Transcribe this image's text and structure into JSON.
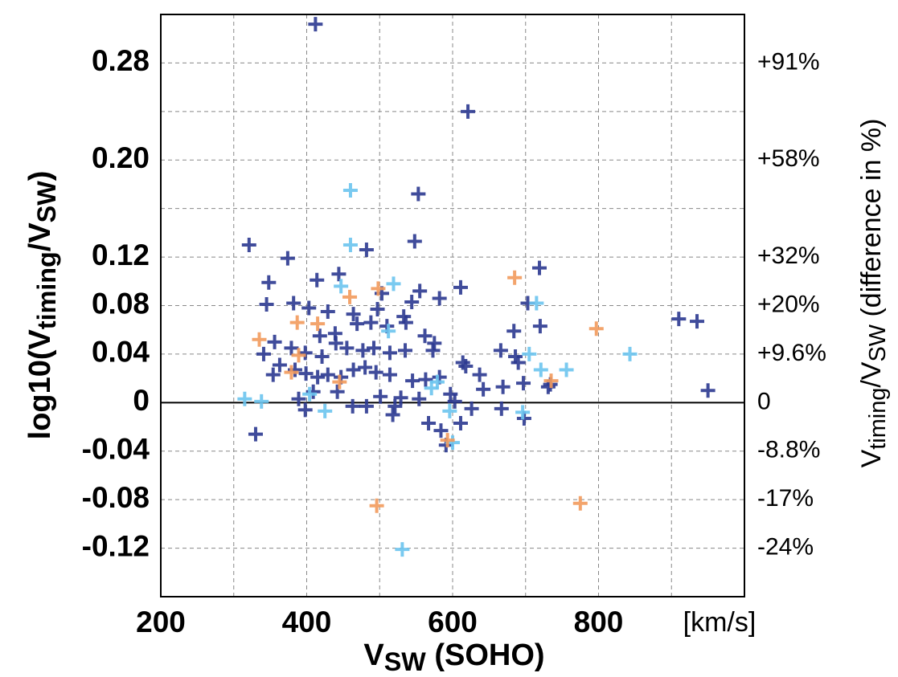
{
  "chart_data": {
    "type": "scatter",
    "xlabel": [
      "V",
      "SW",
      " (SOHO)"
    ],
    "xunit": "[km/s]",
    "ylabel": [
      "log10(V",
      "timing",
      "/V",
      "SW",
      ")"
    ],
    "y2label": [
      "V",
      "timing",
      "/V",
      "SW",
      " (difference in %)"
    ],
    "xlim": [
      200,
      1000
    ],
    "xticks": [
      200,
      400,
      600,
      800
    ],
    "xminor": [
      300,
      500,
      700,
      900
    ],
    "ylim": [
      -0.16,
      0.32
    ],
    "yticks": [
      -0.12,
      -0.08,
      -0.04,
      0,
      0.04,
      0.08,
      0.12,
      {
        "value": 0.2,
        "label": "0.20"
      },
      0.28
    ],
    "yminor": [
      0.16,
      0.24
    ],
    "y2lim": [
      -0.16,
      0.32
    ],
    "y2ticks": [
      {
        "value": -0.12,
        "label": "-24%"
      },
      {
        "value": -0.08,
        "label": "-17%"
      },
      {
        "value": -0.04,
        "label": "-8.8%"
      },
      0,
      {
        "value": 0.04,
        "label": "+9.6%"
      },
      {
        "value": 0.08,
        "label": "+20%"
      },
      {
        "value": 0.12,
        "label": "+32%"
      },
      {
        "value": 0.2,
        "label": "+58%"
      },
      {
        "value": 0.28,
        "label": "+91%"
      }
    ],
    "hline": 0,
    "grid": true,
    "series": [
      {
        "color": "#2b3990",
        "x": [
          412,
          621,
          553,
          321,
          548,
          482,
          374,
          719,
          348,
          414,
          444,
          611,
          555,
          503,
          345,
          382,
          403,
          429,
          464,
          497,
          544,
          582,
          703,
          684,
          720,
          910,
          935,
          950,
          356,
          418,
          439,
          469,
          488,
          510,
          533,
          536,
          562,
          575,
          341,
          379,
          398,
          421,
          440,
          455,
          477,
          492,
          514,
          535,
          573,
          614,
          618,
          666,
          686,
          690,
          637,
          354,
          363,
          384,
          399,
          415,
          429,
          447,
          464,
          480,
          495,
          514,
          545,
          563,
          582,
          597,
          642,
          669,
          697,
          731,
          734,
          389,
          409,
          442,
          463,
          482,
          501,
          521,
          529,
          554,
          603,
          626,
          667,
          698,
          567,
          584,
          591,
          330,
          398,
          518,
          611
        ],
        "values": [
          0.312,
          0.24,
          0.172,
          0.13,
          0.133,
          0.126,
          0.119,
          0.111,
          0.099,
          0.101,
          0.106,
          0.095,
          0.092,
          0.09,
          0.081,
          0.082,
          0.078,
          0.075,
          0.073,
          0.077,
          0.083,
          0.086,
          0.082,
          0.059,
          0.063,
          0.069,
          0.067,
          0.01,
          0.05,
          0.055,
          0.057,
          0.065,
          0.066,
          0.063,
          0.071,
          0.066,
          0.055,
          0.049,
          0.04,
          0.045,
          0.041,
          0.038,
          0.049,
          0.045,
          0.043,
          0.045,
          0.041,
          0.043,
          0.043,
          0.033,
          0.03,
          0.043,
          0.038,
          0.033,
          0.023,
          0.023,
          0.031,
          0.027,
          0.024,
          0.021,
          0.023,
          0.021,
          0.027,
          0.029,
          0.025,
          0.023,
          0.018,
          0.019,
          0.021,
          0.007,
          0.011,
          0.013,
          0.016,
          0.013,
          0.015,
          0.003,
          0.009,
          0.009,
          -0.003,
          -0.003,
          0.005,
          -0.003,
          0.004,
          0.003,
          0.001,
          -0.005,
          -0.005,
          -0.013,
          -0.017,
          -0.023,
          -0.035,
          -0.026,
          -0.006,
          -0.01,
          -0.017
        ]
      },
      {
        "color": "#6cc4ee",
        "x": [
          460,
          460,
          519,
          447,
          715,
          512,
          705,
          843,
          756,
          721,
          579,
          571,
          404,
          315,
          338,
          425,
          596,
          696,
          600,
          531
        ],
        "values": [
          0.175,
          0.13,
          0.098,
          0.096,
          0.082,
          0.059,
          0.04,
          0.04,
          0.027,
          0.027,
          0.017,
          0.012,
          0.007,
          0.003,
          0.001,
          -0.007,
          -0.007,
          -0.008,
          -0.033,
          -0.121
        ]
      },
      {
        "color": "#f29a5c",
        "x": [
          685,
          498,
          459,
          387,
          415,
          797,
          335,
          389,
          379,
          445,
          735,
          593,
          496,
          775
        ],
        "values": [
          0.103,
          0.094,
          0.087,
          0.066,
          0.065,
          0.061,
          0.052,
          0.039,
          0.025,
          0.017,
          0.018,
          -0.031,
          -0.085,
          -0.083
        ]
      }
    ]
  }
}
